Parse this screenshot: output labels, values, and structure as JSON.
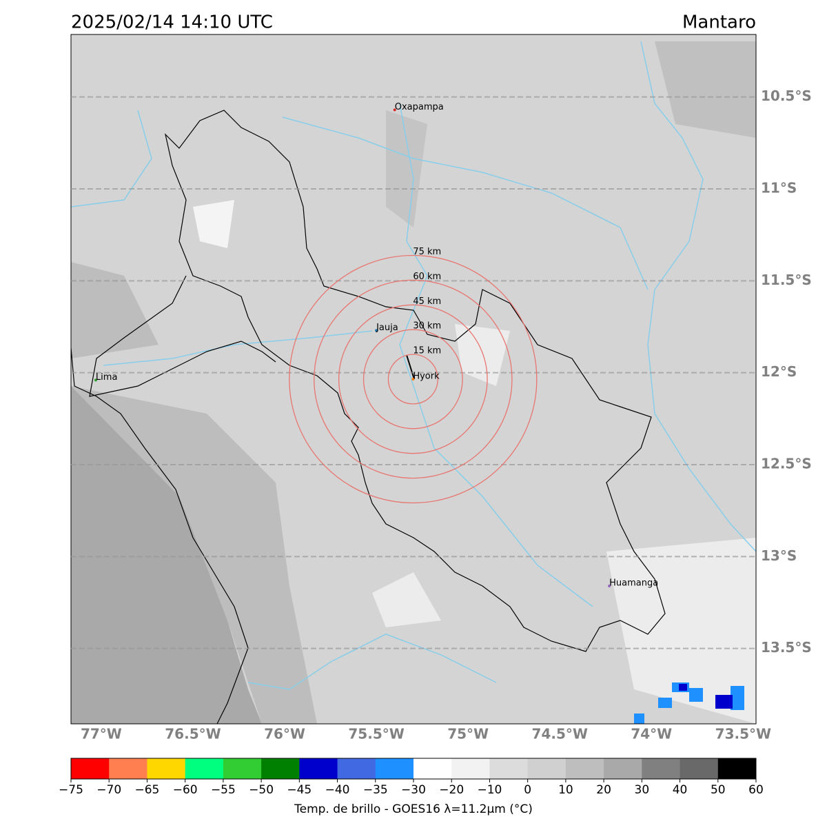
{
  "title": "2025/02/14 14:10 UTC",
  "region": "Mantaro",
  "map": {
    "lon_lim": [
      -77.165,
      -73.43
    ],
    "lat_lim": [
      -10.16,
      -13.91
    ],
    "lat_ticks": [
      {
        "value": -10.5,
        "label": "10.5°S"
      },
      {
        "value": -11,
        "label": "11°S"
      },
      {
        "value": -11.5,
        "label": "11.5°S"
      },
      {
        "value": -12,
        "label": "12°S"
      },
      {
        "value": -12.5,
        "label": "12.5°S"
      },
      {
        "value": -13,
        "label": "13°S"
      },
      {
        "value": -13.5,
        "label": "13.5°S"
      }
    ],
    "lon_ticks": [
      {
        "value": -77,
        "label": "77°W"
      },
      {
        "value": -76.5,
        "label": "76.5°W"
      },
      {
        "value": -76,
        "label": "76°W"
      },
      {
        "value": -75.5,
        "label": "75.5°W"
      },
      {
        "value": -75,
        "label": "75°W"
      },
      {
        "value": -74.5,
        "label": "74.5°W"
      },
      {
        "value": -74,
        "label": "74°W"
      },
      {
        "value": -73.5,
        "label": "73.5°W"
      }
    ],
    "cities": [
      {
        "name": "Oxapampa",
        "lon": -75.4,
        "lat": -10.57,
        "color": "#d62728"
      },
      {
        "name": "Jauja",
        "lon": -75.5,
        "lat": -11.77,
        "color": "#1f77b4"
      },
      {
        "name": "Lima",
        "lon": -77.03,
        "lat": -12.04,
        "color": "#2ca02c"
      },
      {
        "name": "Huamanga",
        "lon": -74.23,
        "lat": -13.16,
        "color": "#9467bd"
      },
      {
        "name": "Hyork",
        "lon": -75.3,
        "lat": -12.035,
        "color": "#ff7f0e"
      }
    ],
    "center": {
      "lon": -75.3,
      "lat": -12.035
    },
    "rings_km": [
      {
        "value": 15,
        "label": "15 km"
      },
      {
        "value": 30,
        "label": "30 km"
      },
      {
        "value": 45,
        "label": "45 km"
      },
      {
        "value": 60,
        "label": "60 km"
      },
      {
        "value": 75,
        "label": "75 km"
      }
    ],
    "ring_color": "#e8756f"
  },
  "colorbar": {
    "label": "Temp. de brillo - GOES16 λ=11.2μm (°C)",
    "ticks": [
      {
        "value": -75,
        "label": "−75"
      },
      {
        "value": -70,
        "label": "−70"
      },
      {
        "value": -65,
        "label": "−65"
      },
      {
        "value": -60,
        "label": "−60"
      },
      {
        "value": -55,
        "label": "−55"
      },
      {
        "value": -50,
        "label": "−50"
      },
      {
        "value": -45,
        "label": "−45"
      },
      {
        "value": -40,
        "label": "−40"
      },
      {
        "value": -35,
        "label": "−35"
      },
      {
        "value": -30,
        "label": "−30"
      },
      {
        "value": -20,
        "label": "−20"
      },
      {
        "value": -10,
        "label": "−10"
      },
      0,
      10,
      20,
      30,
      40,
      50,
      60
    ],
    "colors": [
      "#ff0000",
      "#ff7f50",
      "#ffd700",
      "#00ff7f",
      "#32cd32",
      "#008000",
      "#0000cd",
      "#4169e1",
      "#1e90ff",
      "#ffffff",
      "#f2f2f2",
      "#dcdcdc",
      "#d0d0d0",
      "#bebebe",
      "#a9a9a9",
      "#808080",
      "#696969",
      "#000000"
    ]
  }
}
